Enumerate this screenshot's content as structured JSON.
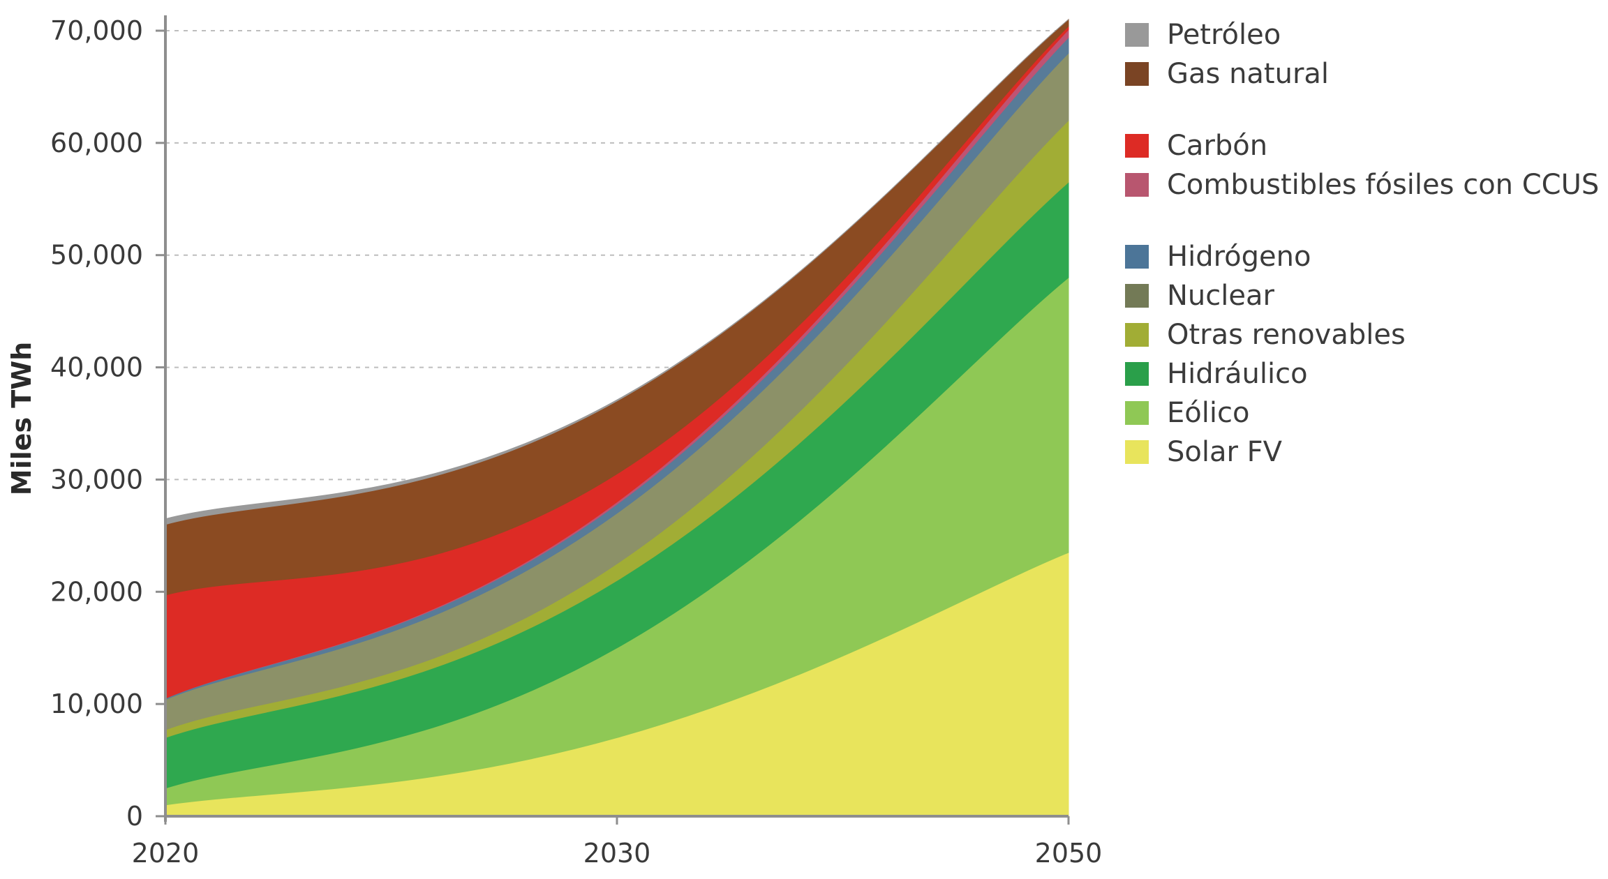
{
  "chart_data": {
    "type": "area",
    "stacked": true,
    "x": [
      "2020",
      "2030",
      "2050"
    ],
    "ylabel": "Miles TWh",
    "xlabel": "",
    "ylim": [
      0,
      70000
    ],
    "yticks": [
      0,
      10000,
      20000,
      30000,
      40000,
      50000,
      60000,
      70000
    ],
    "ytick_labels": [
      "0",
      "10,000",
      "20,000",
      "30,000",
      "40,000",
      "50,000",
      "60,000",
      "70,000"
    ],
    "grid": true,
    "legend_position": "right",
    "series": [
      {
        "name": "Solar FV",
        "color": "#e8e45c",
        "values": [
          1000,
          7000,
          23500
        ]
      },
      {
        "name": "Eólico",
        "color": "#8fc855",
        "values": [
          1500,
          8000,
          24500
        ]
      },
      {
        "name": "Hidráulico",
        "color": "#2fa84f",
        "values": [
          4500,
          6000,
          8500
        ]
      },
      {
        "name": "Otras renovables",
        "color": "#a1ad35",
        "values": [
          700,
          1500,
          5500
        ]
      },
      {
        "name": "Nuclear",
        "color": "#8c9168",
        "values": [
          2700,
          4500,
          6000
        ]
      },
      {
        "name": "Hidrógeno",
        "color": "#587b98",
        "values": [
          100,
          800,
          1400
        ]
      },
      {
        "name": "Combustibles fósiles con CCUS",
        "color": "#bf5373",
        "values": [
          0,
          200,
          700
        ]
      },
      {
        "name": "Carbón",
        "color": "#dd2b25",
        "values": [
          9200,
          2500,
          300
        ]
      },
      {
        "name": "Gas natural",
        "color": "#8b4b22",
        "values": [
          6300,
          6500,
          600
        ]
      },
      {
        "name": "Petróleo",
        "color": "#999999",
        "values": [
          500,
          100,
          0
        ]
      }
    ]
  },
  "legend": {
    "items": [
      {
        "label": "Petróleo",
        "color": "#999999"
      },
      {
        "label": "Gas natural",
        "color": "#7a4424"
      },
      {
        "label": "Carbón",
        "color": "#dd2b25"
      },
      {
        "label": "Combustibles fósiles con CCUS",
        "color": "#b8566f"
      },
      {
        "label": "Hidrógeno",
        "color": "#4c7598"
      },
      {
        "label": "Nuclear",
        "color": "#737a56"
      },
      {
        "label": "Otras renovables",
        "color": "#a1ad35"
      },
      {
        "label": "Hidráulico",
        "color": "#2a9f4a"
      },
      {
        "label": "Eólico",
        "color": "#8fc855"
      },
      {
        "label": "Solar FV",
        "color": "#e8e45c"
      }
    ]
  }
}
